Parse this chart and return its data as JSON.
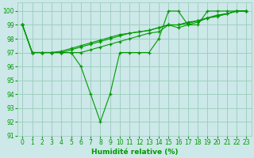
{
  "title": "",
  "xlabel": "Humidité relative (%)",
  "ylabel": "",
  "bg_color": "#cce8e8",
  "grid_color": "#99ccbb",
  "line_color": "#009900",
  "xlim": [
    -0.5,
    23.5
  ],
  "ylim": [
    91,
    100.6
  ],
  "yticks": [
    91,
    92,
    93,
    94,
    95,
    96,
    97,
    98,
    99,
    100
  ],
  "xticks": [
    0,
    1,
    2,
    3,
    4,
    5,
    6,
    7,
    8,
    9,
    10,
    11,
    12,
    13,
    14,
    15,
    16,
    17,
    18,
    19,
    20,
    21,
    22,
    23
  ],
  "series": [
    [
      99,
      97,
      97,
      97,
      97,
      97,
      96,
      94,
      92,
      94,
      97,
      97,
      97,
      97,
      98,
      100,
      100,
      99,
      99,
      100,
      100,
      100,
      100,
      100
    ],
    [
      99,
      97,
      97,
      97,
      97,
      97,
      97,
      97.2,
      97.4,
      97.6,
      97.8,
      98.0,
      98.2,
      98.4,
      98.5,
      99.0,
      98.8,
      99.0,
      99.2,
      99.5,
      99.6,
      99.8,
      100,
      100
    ],
    [
      99,
      97,
      97,
      97,
      97,
      97.2,
      97.4,
      97.6,
      97.8,
      98.0,
      98.2,
      98.4,
      98.5,
      98.6,
      98.8,
      99.0,
      99.0,
      99.2,
      99.3,
      99.5,
      99.7,
      99.8,
      100,
      100
    ],
    [
      99,
      97,
      97,
      97,
      97.1,
      97.3,
      97.5,
      97.7,
      97.9,
      98.1,
      98.3,
      98.4,
      98.5,
      98.6,
      98.8,
      99.0,
      99.0,
      99.1,
      99.3,
      99.5,
      99.7,
      99.8,
      100,
      100
    ]
  ]
}
